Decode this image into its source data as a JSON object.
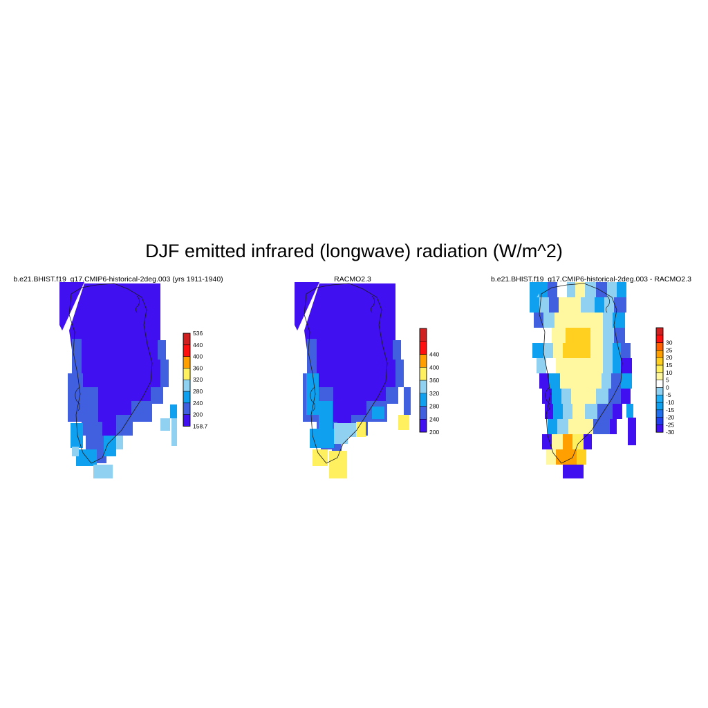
{
  "title": "DJF emitted infrared (longwave) radiation (W/m^2)",
  "palette": {
    "purple": "#4010f0",
    "royal": "#4060e0",
    "sky": "#10a0f0",
    "light_blue": "#90d0f0",
    "pale_yellow": "#fff8a0",
    "yellow": "#fff060",
    "gold": "#ffd020",
    "orange": "#ffa000",
    "red_orange": "#ff6000",
    "red": "#ff1010",
    "dark_red": "#d02020",
    "mid_blue": "#20b0f8",
    "blue2": "#2070f0",
    "blue3": "#2040f0",
    "white": "#ffffff"
  },
  "panels": [
    {
      "title": "b.e21.BHIST.f19_g17.CMIP6-historical-2deg.003 (yrs 1911-1940)",
      "colorbar": {
        "colors": [
          "purple",
          "royal",
          "sky",
          "light_blue",
          "yellow",
          "orange",
          "red",
          "dark_red"
        ],
        "labels": [
          "158.7",
          "200",
          "240",
          "280",
          "320",
          "360",
          "400",
          "440",
          "536"
        ]
      }
    },
    {
      "title": "RACMO2.3",
      "colorbar": {
        "colors": [
          "purple",
          "royal",
          "sky",
          "light_blue",
          "yellow",
          "orange",
          "red",
          "dark_red"
        ],
        "labels": [
          "200",
          "240",
          "280",
          "320",
          "360",
          "400",
          "440"
        ]
      }
    },
    {
      "title": "b.e21.BHIST.f19_g17.CMIP6-historical-2deg.003 - RACMO2.3",
      "colorbar": {
        "colors": [
          "purple",
          "blue3",
          "blue2",
          "sky",
          "mid_blue",
          "light_blue",
          "white",
          "pale_yellow",
          "yellow",
          "gold",
          "orange",
          "red_orange",
          "red",
          "dark_red"
        ],
        "labels": [
          "-30",
          "-25",
          "-20",
          "-15",
          "-10",
          "-5",
          "0",
          "5",
          "10",
          "15",
          "20",
          "25",
          "30"
        ]
      }
    }
  ]
}
